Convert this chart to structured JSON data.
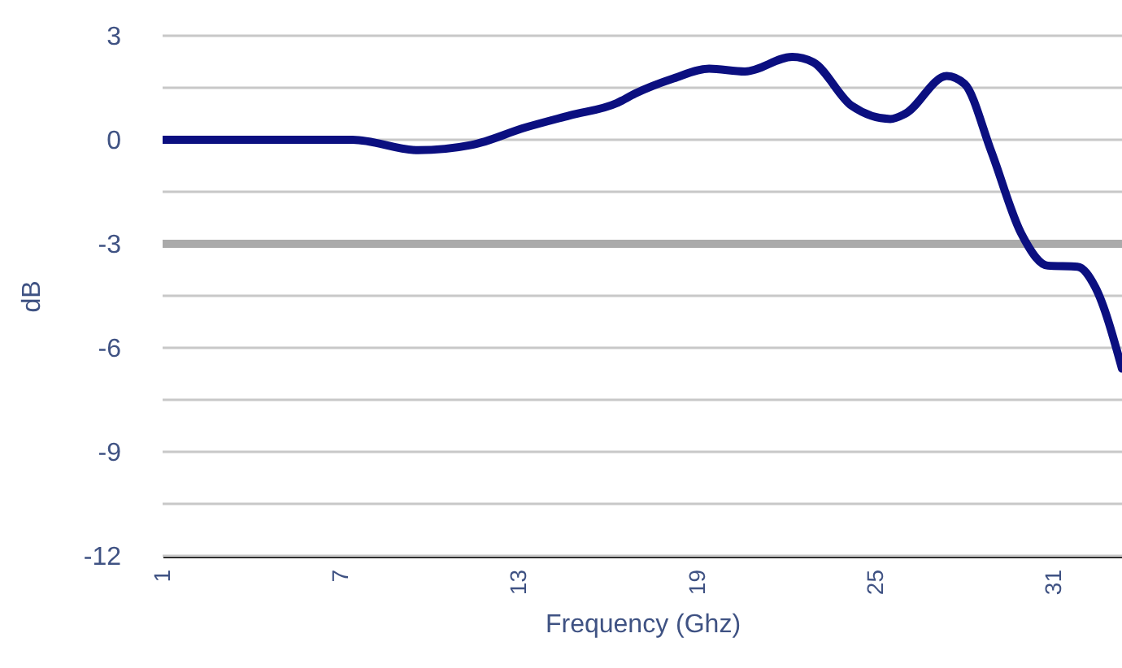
{
  "chart_data": {
    "type": "line",
    "xlabel": "Frequency (Ghz)",
    "ylabel": "dB",
    "xlim": [
      1,
      33.3
    ],
    "xticks": [
      1,
      7,
      13,
      19,
      25,
      31
    ],
    "ylim": [
      -12,
      3
    ],
    "yticks": [
      -12,
      {
        "value": -10.5,
        "label": null
      },
      -9,
      {
        "value": -7.5,
        "label": null
      },
      -6,
      {
        "value": -4.5,
        "label": null
      },
      -3,
      {
        "value": -1.5,
        "label": null
      },
      0,
      {
        "value": 1.5,
        "label": null
      },
      3
    ],
    "grid": "y",
    "marker": "none",
    "line_style": "solid",
    "x": [
      1,
      7.4,
      9.6,
      11.4,
      13.2,
      14.7,
      16.3,
      16.9,
      18.2,
      19.4,
      20.6,
      22.2,
      22.9,
      24.2,
      25.5,
      26.0,
      27.4,
      28.0,
      28.9,
      29.9,
      30.8,
      31.8,
      32.4,
      33.3
    ],
    "series": [
      {
        "color": "#0b0f80",
        "values": [
          0,
          0,
          -0.3,
          -0.15,
          0.35,
          0.7,
          1.06,
          1.33,
          1.77,
          2.05,
          1.97,
          2.39,
          2.24,
          0.98,
          0.6,
          0.75,
          1.84,
          1.61,
          -0.34,
          -2.69,
          -3.63,
          -3.66,
          -4.25,
          -6.6
        ]
      }
    ],
    "ref_lines": [
      {
        "axis": "y",
        "value": -3,
        "color": "#aaaaaa",
        "line_style": "solid"
      }
    ]
  }
}
